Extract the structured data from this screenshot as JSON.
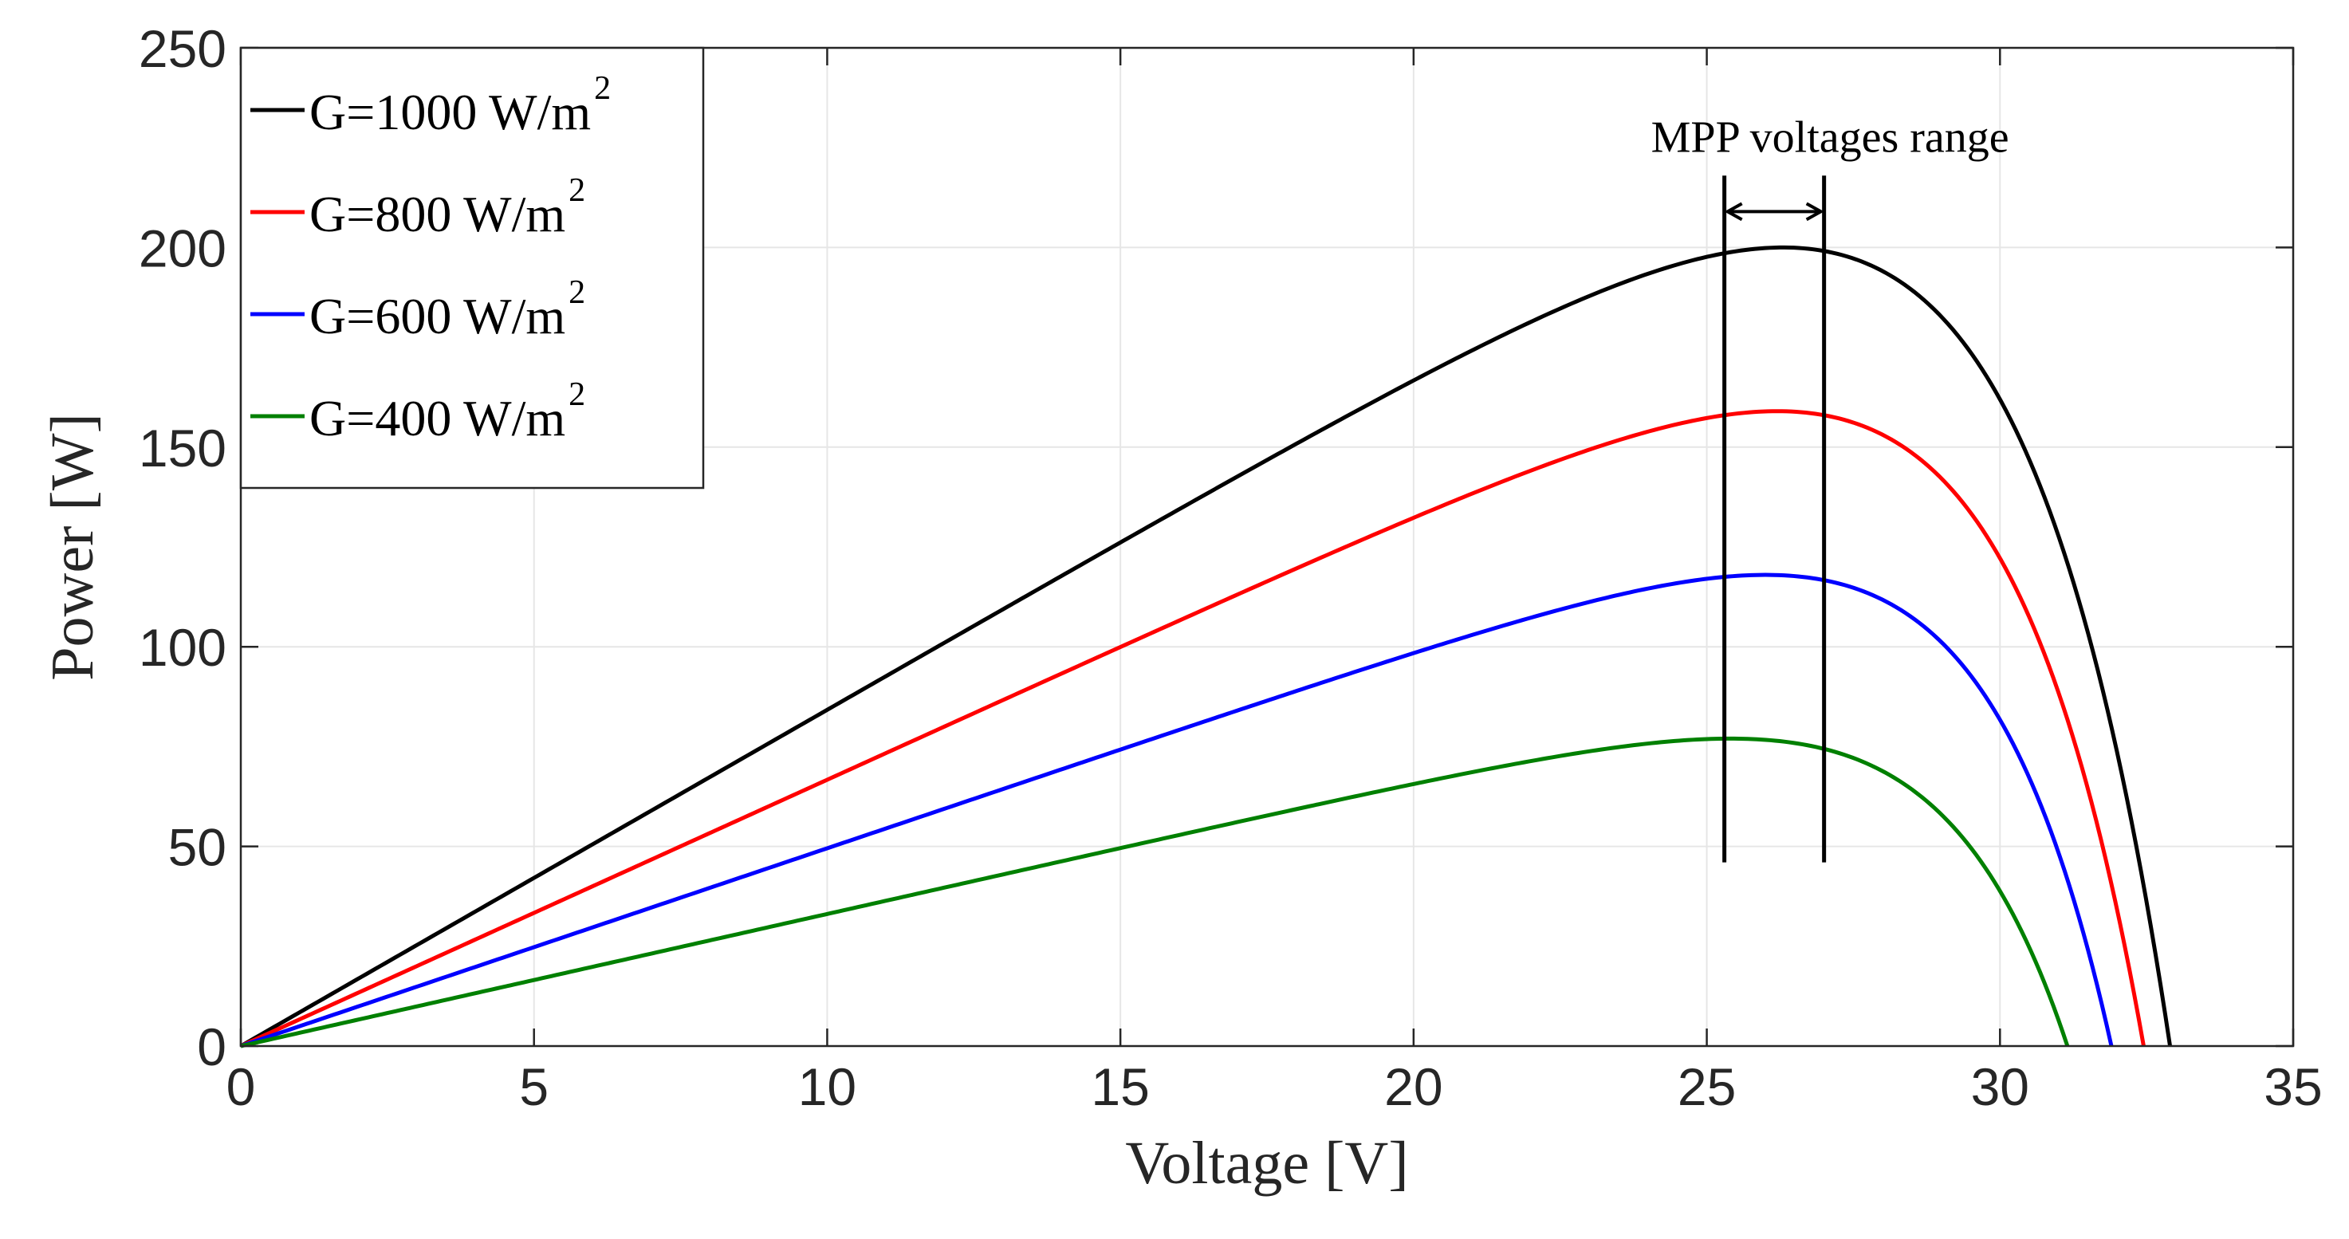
{
  "chart_data": {
    "type": "line",
    "title": "",
    "xlabel": "Voltage [V]",
    "ylabel": "Power [W]",
    "xlim": [
      0,
      35
    ],
    "ylim": [
      0,
      250
    ],
    "xticks": [
      0,
      5,
      10,
      15,
      20,
      25,
      30,
      35
    ],
    "yticks": [
      0,
      50,
      100,
      150,
      200,
      250
    ],
    "grid": true,
    "legend_position": "top-left",
    "series": [
      {
        "name": "G=1000 W/m",
        "sup": "2",
        "color": "#000000",
        "isc": 7.95,
        "voc": 32.9,
        "vmpp": 26.3,
        "pmax": 200
      },
      {
        "name": "G=800 W/m",
        "sup": "2",
        "color": "#ff0000",
        "isc": 6.36,
        "voc": 32.45,
        "vmpp": 26.2,
        "pmax": 159
      },
      {
        "name": "G=600 W/m",
        "sup": "2",
        "color": "#0000ff",
        "isc": 4.77,
        "voc": 31.9,
        "vmpp": 26.0,
        "pmax": 118
      },
      {
        "name": "G=400 W/m",
        "sup": "2",
        "color": "#008000",
        "isc": 3.18,
        "voc": 31.15,
        "vmpp": 25.4,
        "pmax": 77
      }
    ],
    "annotation": {
      "text": "MPP voltages range",
      "v_left": 25.3,
      "v_right": 27.0,
      "line_bottom": 46,
      "line_top": 218,
      "arrow_y": 209
    }
  }
}
